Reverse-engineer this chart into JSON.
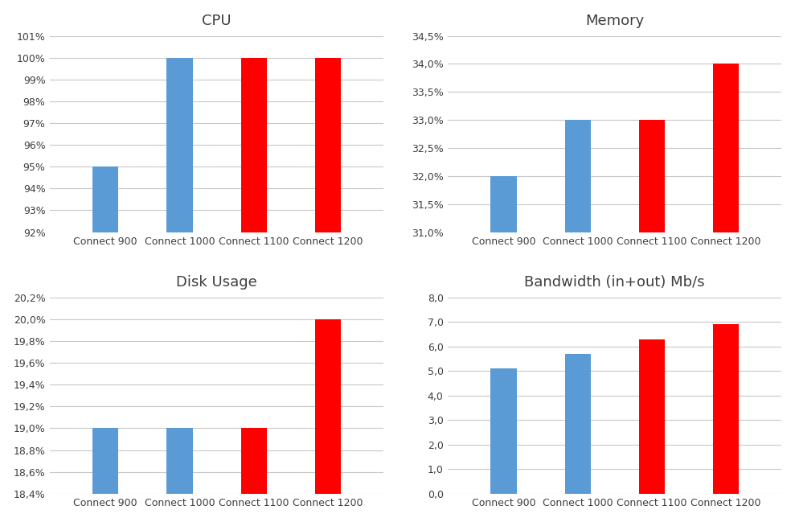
{
  "categories": [
    "Connect 900",
    "Connect 1000",
    "Connect 1100",
    "Connect 1200"
  ],
  "cpu": {
    "title": "CPU",
    "values": [
      95,
      100,
      100,
      100
    ],
    "colors": [
      "#5b9bd5",
      "#5b9bd5",
      "#ff0000",
      "#ff0000"
    ],
    "ylim": [
      92,
      101
    ],
    "yticks": [
      92,
      93,
      94,
      95,
      96,
      97,
      98,
      99,
      100,
      101
    ],
    "yticklabels": [
      "92%",
      "93%",
      "94%",
      "95%",
      "96%",
      "97%",
      "98%",
      "99%",
      "100%",
      "101%"
    ]
  },
  "memory": {
    "title": "Memory",
    "values": [
      32.0,
      33.0,
      33.0,
      34.0
    ],
    "colors": [
      "#5b9bd5",
      "#5b9bd5",
      "#ff0000",
      "#ff0000"
    ],
    "ylim": [
      31.0,
      34.5
    ],
    "yticks": [
      31.0,
      31.5,
      32.0,
      32.5,
      33.0,
      33.5,
      34.0,
      34.5
    ],
    "yticklabels": [
      "31,0%",
      "31,5%",
      "32,0%",
      "32,5%",
      "33,0%",
      "33,5%",
      "34,0%",
      "34,5%"
    ]
  },
  "disk": {
    "title": "Disk Usage",
    "values": [
      19.0,
      19.0,
      19.0,
      20.0
    ],
    "colors": [
      "#5b9bd5",
      "#5b9bd5",
      "#ff0000",
      "#ff0000"
    ],
    "ylim": [
      18.4,
      20.2
    ],
    "yticks": [
      18.4,
      18.6,
      18.8,
      19.0,
      19.2,
      19.4,
      19.6,
      19.8,
      20.0,
      20.2
    ],
    "yticklabels": [
      "18,4%",
      "18,6%",
      "18,8%",
      "19,0%",
      "19,2%",
      "19,4%",
      "19,6%",
      "19,8%",
      "20,0%",
      "20,2%"
    ]
  },
  "bandwidth": {
    "title": "Bandwidth (in+out) Mb/s",
    "values": [
      5.1,
      5.7,
      6.3,
      6.9
    ],
    "colors": [
      "#5b9bd5",
      "#5b9bd5",
      "#ff0000",
      "#ff0000"
    ],
    "ylim": [
      0,
      8.0
    ],
    "yticks": [
      0.0,
      1.0,
      2.0,
      3.0,
      4.0,
      5.0,
      6.0,
      7.0,
      8.0
    ],
    "yticklabels": [
      "0,0",
      "1,0",
      "2,0",
      "3,0",
      "4,0",
      "5,0",
      "6,0",
      "7,0",
      "8,0"
    ]
  },
  "bg_color": "#ffffff",
  "grid_color": "#c8c8c8",
  "title_fontsize": 13,
  "tick_fontsize": 9,
  "xlabel_fontsize": 9,
  "bar_width": 0.35
}
